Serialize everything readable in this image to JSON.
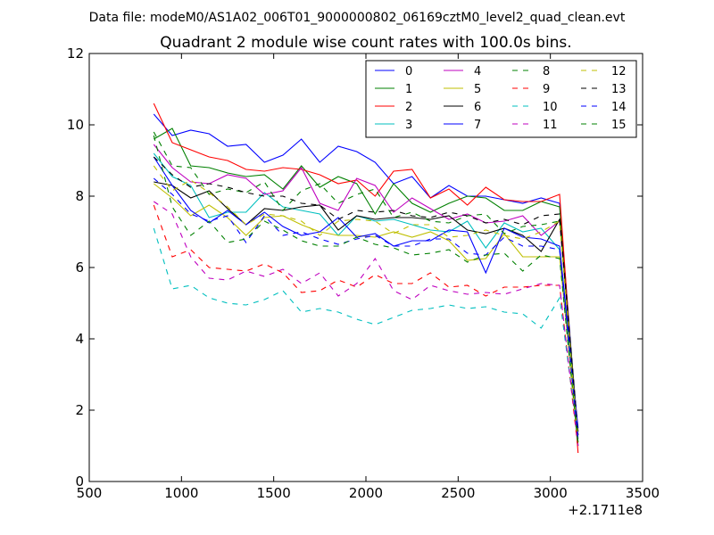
{
  "chart_data": {
    "type": "line",
    "suptitle": "Data file: modeM0/AS1A02_006T01_9000000802_06169cztM0_level2_quad_clean.evt",
    "title": "Quadrant 2 module wise count rates with 100.0s bins.",
    "xlabel": "",
    "ylabel": "",
    "x_offset_label": "+2.1711e8",
    "xlim": [
      500,
      3500
    ],
    "ylim": [
      0,
      12
    ],
    "xticks": [
      500,
      1000,
      1500,
      2000,
      2500,
      3000,
      3500
    ],
    "yticks": [
      0,
      2,
      4,
      6,
      8,
      10,
      12
    ],
    "grid": false,
    "legend_position": "top-right",
    "legend_columns": 4,
    "x": [
      850,
      950,
      1050,
      1150,
      1250,
      1350,
      1450,
      1550,
      1650,
      1750,
      1850,
      1950,
      2050,
      2150,
      2250,
      2350,
      2450,
      2550,
      2650,
      2750,
      2850,
      2950,
      3050,
      3150
    ],
    "series": [
      {
        "name": "0",
        "color": "#0000ff",
        "dash": "solid",
        "values": [
          10.3,
          9.7,
          9.85,
          9.75,
          9.4,
          9.45,
          8.95,
          9.15,
          9.6,
          8.95,
          9.4,
          9.25,
          8.95,
          8.35,
          8.55,
          7.95,
          8.3,
          8.0,
          8.0,
          7.9,
          7.8,
          7.95,
          7.8,
          1.2
        ]
      },
      {
        "name": "1",
        "color": "#008000",
        "dash": "solid",
        "values": [
          9.6,
          9.9,
          8.85,
          8.8,
          8.65,
          8.55,
          8.6,
          8.2,
          8.85,
          8.25,
          8.55,
          8.35,
          7.5,
          8.35,
          7.8,
          7.55,
          7.8,
          8.0,
          7.95,
          7.6,
          7.6,
          7.85,
          7.7,
          1.0
        ]
      },
      {
        "name": "2",
        "color": "#ff0000",
        "dash": "solid",
        "values": [
          10.6,
          9.5,
          9.3,
          9.1,
          9.0,
          8.75,
          8.7,
          8.8,
          8.75,
          8.6,
          8.35,
          8.45,
          8.0,
          8.7,
          8.75,
          7.95,
          8.2,
          7.75,
          8.25,
          7.9,
          7.85,
          7.85,
          8.05,
          0.8
        ]
      },
      {
        "name": "3",
        "color": "#00bfbf",
        "dash": "solid",
        "values": [
          9.2,
          8.55,
          8.3,
          7.4,
          7.55,
          7.55,
          8.1,
          7.7,
          7.6,
          7.5,
          6.9,
          7.45,
          7.3,
          7.35,
          7.2,
          7.05,
          7.0,
          7.3,
          6.55,
          7.25,
          7.0,
          7.1,
          6.5,
          1.4
        ]
      },
      {
        "name": "4",
        "color": "#bf00bf",
        "dash": "solid",
        "values": [
          9.45,
          8.8,
          8.4,
          8.35,
          8.6,
          8.5,
          8.05,
          8.15,
          8.8,
          7.8,
          7.6,
          8.5,
          8.3,
          7.55,
          7.95,
          7.65,
          7.35,
          7.5,
          7.25,
          7.3,
          7.45,
          6.9,
          7.3,
          1.3
        ]
      },
      {
        "name": "5",
        "color": "#bfbf00",
        "dash": "solid",
        "values": [
          8.35,
          7.95,
          7.45,
          7.75,
          7.4,
          6.9,
          7.4,
          7.45,
          7.2,
          7.0,
          6.9,
          6.9,
          6.85,
          7.0,
          6.85,
          7.0,
          6.75,
          6.2,
          6.25,
          6.95,
          6.3,
          6.3,
          6.3,
          1.1
        ]
      },
      {
        "name": "6",
        "color": "#000000",
        "dash": "solid",
        "values": [
          8.4,
          8.3,
          7.95,
          8.15,
          7.65,
          7.2,
          7.65,
          7.6,
          7.7,
          7.75,
          7.05,
          7.45,
          7.35,
          7.4,
          7.4,
          7.35,
          7.45,
          7.05,
          6.95,
          7.1,
          6.9,
          6.45,
          7.35,
          1.4
        ]
      },
      {
        "name": "7",
        "color": "#0000ff",
        "dash": "solid",
        "values": [
          9.1,
          8.3,
          7.6,
          7.25,
          7.6,
          7.2,
          7.55,
          7.15,
          6.9,
          7.0,
          7.4,
          6.85,
          6.95,
          6.6,
          6.75,
          6.75,
          7.05,
          7.0,
          5.85,
          7.1,
          6.85,
          6.8,
          6.6,
          1.5
        ]
      },
      {
        "name": "8",
        "color": "#008000",
        "dash": "dashed",
        "values": [
          9.8,
          8.85,
          8.8,
          8.05,
          8.2,
          8.1,
          8.4,
          7.6,
          8.15,
          8.35,
          7.8,
          8.05,
          8.2,
          7.4,
          7.55,
          7.3,
          7.25,
          7.45,
          7.5,
          6.95,
          7.15,
          7.2,
          7.3,
          1.1
        ]
      },
      {
        "name": "9",
        "color": "#ff0000",
        "dash": "dashed",
        "values": [
          7.75,
          6.3,
          6.5,
          6.0,
          5.95,
          5.9,
          6.1,
          5.85,
          5.3,
          5.35,
          5.65,
          5.45,
          5.8,
          5.55,
          5.55,
          5.85,
          5.45,
          5.5,
          5.2,
          5.45,
          5.45,
          5.5,
          5.5,
          0.9
        ]
      },
      {
        "name": "10",
        "color": "#00bfbf",
        "dash": "dashed",
        "values": [
          7.1,
          5.4,
          5.5,
          5.15,
          5.0,
          4.95,
          5.1,
          5.35,
          4.75,
          4.85,
          4.75,
          4.55,
          4.4,
          4.6,
          4.8,
          4.85,
          4.95,
          4.85,
          4.9,
          4.75,
          4.7,
          4.3,
          5.15,
          1.2
        ]
      },
      {
        "name": "11",
        "color": "#bf00bf",
        "dash": "dashed",
        "values": [
          7.85,
          7.5,
          6.3,
          5.7,
          5.65,
          5.9,
          5.75,
          5.95,
          5.55,
          5.85,
          5.2,
          5.55,
          6.25,
          5.35,
          5.1,
          5.5,
          5.35,
          5.25,
          5.3,
          5.25,
          5.4,
          5.55,
          5.5,
          1.0
        ]
      },
      {
        "name": "12",
        "color": "#bfbf00",
        "dash": "dashed",
        "values": [
          8.85,
          8.15,
          8.45,
          8.1,
          7.7,
          7.2,
          7.5,
          7.45,
          7.3,
          6.9,
          7.3,
          7.35,
          7.3,
          6.95,
          7.2,
          7.2,
          6.85,
          6.9,
          7.05,
          6.9,
          6.8,
          7.0,
          7.3,
          1.2
        ]
      },
      {
        "name": "13",
        "color": "#000000",
        "dash": "dashed",
        "values": [
          9.1,
          8.6,
          8.25,
          8.35,
          8.25,
          8.1,
          8.0,
          8.0,
          7.8,
          7.75,
          7.35,
          7.6,
          7.55,
          7.6,
          7.45,
          7.4,
          7.55,
          7.45,
          7.25,
          7.35,
          7.2,
          7.45,
          7.5,
          1.3
        ]
      },
      {
        "name": "14",
        "color": "#0000ff",
        "dash": "dashed",
        "values": [
          8.5,
          8.05,
          7.5,
          7.3,
          7.45,
          6.7,
          7.45,
          6.9,
          7.0,
          6.8,
          6.65,
          6.8,
          6.9,
          6.6,
          6.6,
          6.8,
          6.8,
          6.4,
          6.35,
          6.85,
          6.6,
          6.6,
          6.5,
          1.2
        ]
      },
      {
        "name": "15",
        "color": "#008000",
        "dash": "dashed",
        "values": [
          9.7,
          7.7,
          6.9,
          7.3,
          6.7,
          6.8,
          7.3,
          7.05,
          6.75,
          6.6,
          6.6,
          6.85,
          6.65,
          6.55,
          6.35,
          6.4,
          6.5,
          6.15,
          6.35,
          6.4,
          5.9,
          6.35,
          6.25,
          1.0
        ]
      }
    ]
  }
}
